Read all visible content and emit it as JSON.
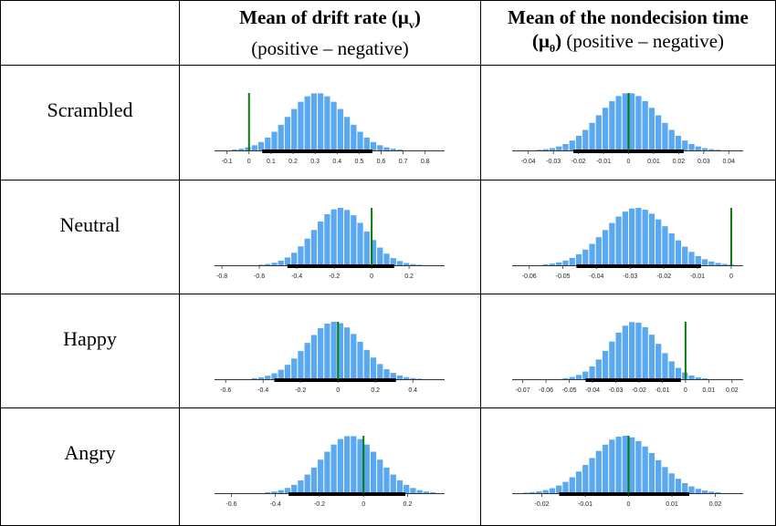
{
  "header": {
    "drift_title": "Mean of drift rate (μ",
    "drift_sub": "v",
    "drift_close": ")",
    "drift_note": "(positive – negative)",
    "ndt_title": "Mean of the nondecision time",
    "ndt_mu": "(μ",
    "ndt_sub": "θ",
    "ndt_close": ")",
    "ndt_note": " (positive – negative)"
  },
  "rows": [
    "Scrambled",
    "Neutral",
    "Happy",
    "Angry"
  ],
  "colors": {
    "bar": "#5aa8f0",
    "zero_line": "#0a7a0a",
    "interval": "#000000"
  },
  "chart_data": [
    {
      "type": "bar",
      "row": "Scrambled",
      "column": "Mean of drift rate",
      "mean": 0.31,
      "sd": 0.13,
      "xlim": [
        -0.14,
        0.88
      ],
      "ticks": [
        -0.1,
        0,
        0.1,
        0.2,
        0.3,
        0.4,
        0.5,
        0.6,
        0.7,
        0.8
      ],
      "tick_labels": [
        "-0.1",
        "0",
        "0.1",
        "0.2",
        "0.3",
        "0.4",
        "0.5",
        "0.6",
        "0.7",
        "0.8"
      ],
      "interval": [
        0.06,
        0.56
      ],
      "reference": 0
    },
    {
      "type": "bar",
      "row": "Scrambled",
      "column": "Mean of the nondecision time",
      "mean": 0.0,
      "sd": 0.012,
      "xlim": [
        -0.045,
        0.045
      ],
      "ticks": [
        -0.04,
        -0.03,
        -0.02,
        -0.01,
        0,
        0.01,
        0.02,
        0.03,
        0.04
      ],
      "tick_labels": [
        "-0.04",
        "-0.03",
        "-0.02",
        "-0.01",
        "0",
        "0.01",
        "0.02",
        "0.03",
        "0.04"
      ],
      "interval": [
        -0.022,
        0.022
      ],
      "reference": 0
    },
    {
      "type": "bar",
      "row": "Neutral",
      "column": "Mean of drift rate",
      "mean": -0.17,
      "sd": 0.14,
      "xlim": [
        -0.82,
        0.38
      ],
      "ticks": [
        -0.8,
        -0.6,
        -0.4,
        -0.2,
        0,
        0.2
      ],
      "tick_labels": [
        "-0.8",
        "-0.6",
        "-0.4",
        "-0.2",
        "0",
        "0.2"
      ],
      "interval": [
        -0.45,
        0.12
      ],
      "reference": 0
    },
    {
      "type": "bar",
      "row": "Neutral",
      "column": "Mean of the nondecision time",
      "mean": -0.028,
      "sd": 0.0095,
      "xlim": [
        -0.064,
        0.003
      ],
      "ticks": [
        -0.06,
        -0.05,
        -0.04,
        -0.03,
        -0.02,
        -0.01,
        0
      ],
      "tick_labels": [
        "-0.06",
        "-0.05",
        "-0.04",
        "-0.03",
        "-0.02",
        "-0.01",
        "0"
      ],
      "interval": [
        -0.046,
        -0.009
      ],
      "reference": 0
    },
    {
      "type": "bar",
      "row": "Happy",
      "column": "Mean of drift rate",
      "mean": -0.02,
      "sd": 0.15,
      "xlim": [
        -0.64,
        0.56
      ],
      "ticks": [
        -0.6,
        -0.4,
        -0.2,
        0,
        0.2,
        0.4
      ],
      "tick_labels": [
        "-0.6",
        "-0.4",
        "-0.2",
        "0",
        "0.2",
        "0.4"
      ],
      "interval": [
        -0.34,
        0.31
      ],
      "reference": 0
    },
    {
      "type": "bar",
      "row": "Happy",
      "column": "Mean of the nondecision time",
      "mean": -0.022,
      "sd": 0.0105,
      "xlim": [
        -0.073,
        0.024
      ],
      "ticks": [
        -0.07,
        -0.06,
        -0.05,
        -0.04,
        -0.03,
        -0.02,
        -0.01,
        0,
        0.01,
        0.02
      ],
      "tick_labels": [
        "-0.07",
        "-0.06",
        "-0.05",
        "-0.04",
        "-0.03",
        "-0.02",
        "-0.01",
        "0",
        "0.01",
        "0.02"
      ],
      "interval": [
        -0.043,
        -0.002
      ],
      "reference": 0
    },
    {
      "type": "bar",
      "row": "Angry",
      "column": "Mean of drift rate",
      "mean": -0.06,
      "sd": 0.13,
      "xlim": [
        -0.66,
        0.36
      ],
      "ticks": [
        -0.6,
        -0.4,
        -0.2,
        0,
        0.2
      ],
      "tick_labels": [
        "-0.6",
        "-0.4",
        "-0.2",
        "0",
        "0.2"
      ],
      "interval": [
        -0.34,
        0.19
      ],
      "reference": 0
    },
    {
      "type": "bar",
      "row": "Angry",
      "column": "Mean of the nondecision time",
      "mean": -0.001,
      "sd": 0.0075,
      "xlim": [
        -0.026,
        0.026
      ],
      "ticks": [
        -0.02,
        -0.01,
        0,
        0.01,
        0.02
      ],
      "tick_labels": [
        "-0.02",
        "-0.01",
        "0",
        "0.01",
        "0.02"
      ],
      "interval": [
        -0.016,
        0.014
      ],
      "reference": 0
    }
  ]
}
